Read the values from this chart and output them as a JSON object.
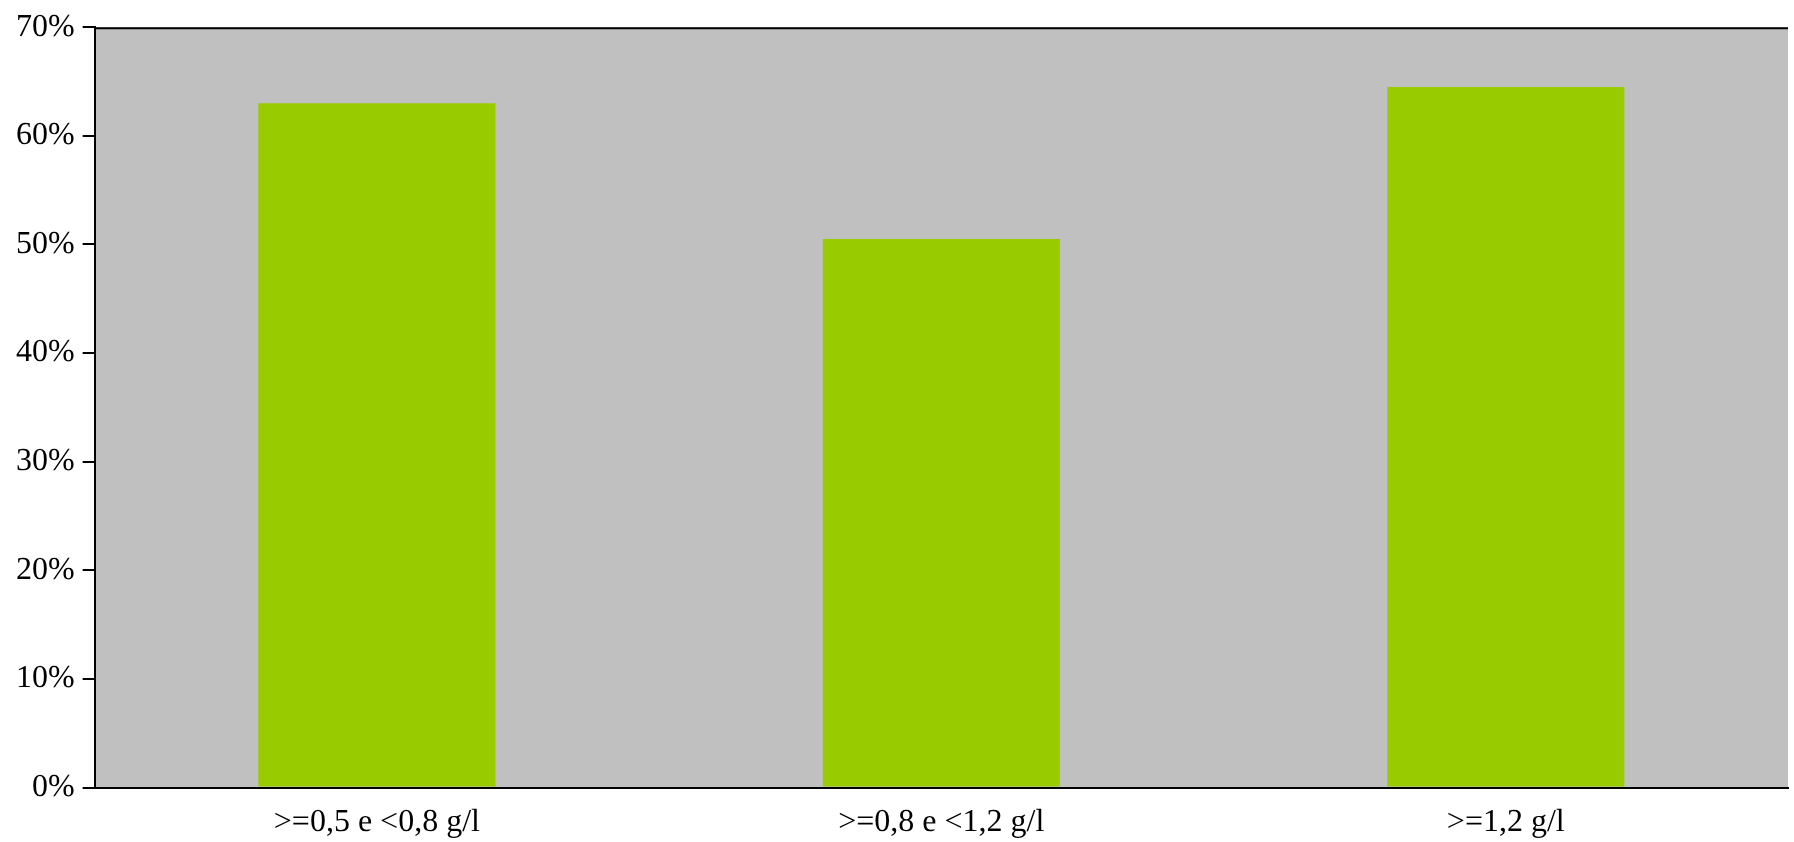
{
  "chart_data": {
    "type": "bar",
    "categories": [
      ">=0,5 e <0,8 g/l",
      ">=0,8 e <1,2 g/l",
      ">=1,2 g/l"
    ],
    "values": [
      63,
      50.5,
      64.5
    ],
    "color": "#99cc00",
    "ylim": [
      0,
      70
    ],
    "yticks": [
      {
        "value": 0,
        "label": "0%"
      },
      {
        "value": 10,
        "label": "10%"
      },
      {
        "value": 20,
        "label": "20%"
      },
      {
        "value": 30,
        "label": "30%"
      },
      {
        "value": 40,
        "label": "40%"
      },
      {
        "value": 50,
        "label": "50%"
      },
      {
        "value": 60,
        "label": "60%"
      },
      {
        "value": 70,
        "label": "70%"
      }
    ],
    "grid": false,
    "legend": false
  }
}
